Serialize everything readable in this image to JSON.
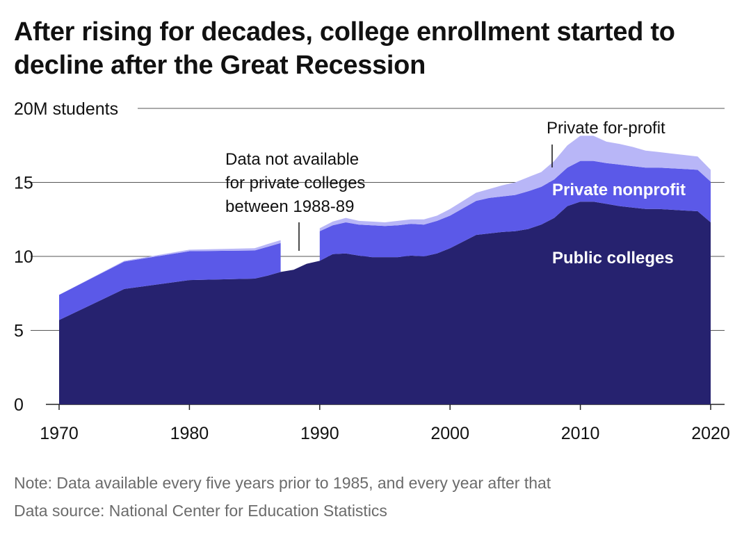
{
  "title": "After rising for decades, college enrollment started to decline after the Great Recession",
  "footer": {
    "note": "Note: Data available every five years prior to 1985, and every year after that",
    "source": "Data source: National Center for Education Statistics"
  },
  "chart_data": {
    "type": "area",
    "stacked": true,
    "ylabel": "",
    "y_unit_label": "20M students",
    "ylim": [
      0,
      20
    ],
    "yticks": [
      0,
      5,
      10,
      15,
      20
    ],
    "ytick_labels": [
      "0",
      "5",
      "10",
      "15",
      "20M students"
    ],
    "xlim": [
      1970,
      2020
    ],
    "xticks": [
      1970,
      1980,
      1990,
      2000,
      2010,
      2020
    ],
    "xtick_labels": [
      "1970",
      "1980",
      "1990",
      "2000",
      "2010",
      "2020"
    ],
    "grid": true,
    "gap": [
      1988,
      1989
    ],
    "x": [
      1970,
      1975,
      1980,
      1985,
      1986,
      1987,
      1988,
      1989,
      1990,
      1991,
      1992,
      1993,
      1994,
      1995,
      1996,
      1997,
      1998,
      1999,
      2000,
      2001,
      2002,
      2003,
      2004,
      2005,
      2006,
      2007,
      2008,
      2009,
      2010,
      2011,
      2012,
      2013,
      2014,
      2015,
      2016,
      2017,
      2018,
      2019,
      2020
    ],
    "series": [
      {
        "name": "Public colleges",
        "color": "#26226f",
        "values": [
          5.7,
          7.8,
          8.4,
          8.5,
          8.7,
          8.95,
          9.1,
          9.5,
          9.7,
          10.15,
          10.2,
          10.05,
          9.95,
          9.95,
          9.95,
          10.05,
          10.0,
          10.2,
          10.55,
          11.0,
          11.45,
          11.55,
          11.65,
          11.7,
          11.85,
          12.15,
          12.6,
          13.4,
          13.7,
          13.7,
          13.55,
          13.4,
          13.3,
          13.2,
          13.2,
          13.15,
          13.1,
          13.05,
          12.3
        ]
      },
      {
        "name": "Private nonprofit",
        "color": "#5b59e8",
        "values": [
          1.7,
          1.85,
          1.95,
          1.9,
          1.95,
          1.95,
          null,
          null,
          2.0,
          1.95,
          2.1,
          2.1,
          2.15,
          2.1,
          2.15,
          2.15,
          2.15,
          2.2,
          2.2,
          2.25,
          2.3,
          2.4,
          2.4,
          2.45,
          2.55,
          2.55,
          2.6,
          2.6,
          2.75,
          2.75,
          2.75,
          2.8,
          2.8,
          2.8,
          2.8,
          2.8,
          2.8,
          2.8,
          2.75
        ]
      },
      {
        "name": "Private for-profit",
        "color": "#b8b6f7",
        "values": [
          0.0,
          0.05,
          0.1,
          0.15,
          0.18,
          0.2,
          null,
          null,
          0.2,
          0.25,
          0.3,
          0.25,
          0.25,
          0.25,
          0.3,
          0.3,
          0.35,
          0.35,
          0.45,
          0.5,
          0.55,
          0.6,
          0.75,
          0.85,
          0.95,
          1.0,
          1.25,
          1.5,
          1.7,
          1.7,
          1.45,
          1.4,
          1.3,
          1.15,
          1.05,
          1.0,
          0.95,
          0.9,
          0.8
        ]
      }
    ],
    "annotations": {
      "gap_note": [
        "Data not available",
        "for private colleges",
        "between 1988-89"
      ],
      "public_label": "Public colleges",
      "nonprofit_label": "Private nonprofit",
      "forprofit_label": "Private for-profit"
    }
  }
}
